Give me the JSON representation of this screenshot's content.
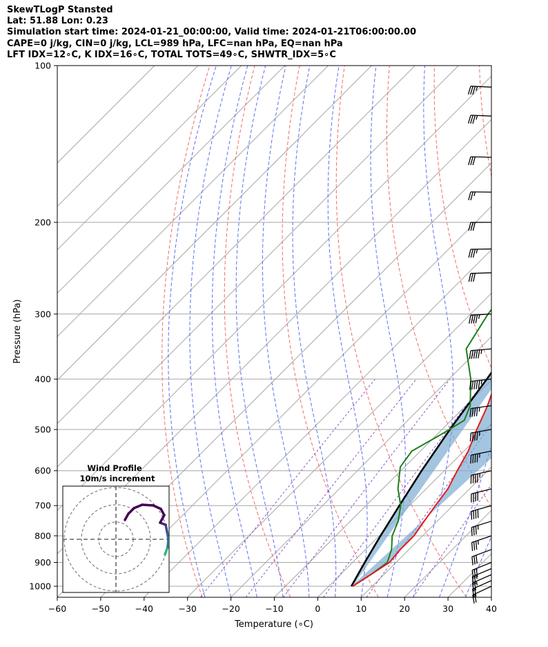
{
  "header": {
    "line1": "SkewTLogP Stansted",
    "line2": "Lat: 51.88   Lon: 0.23",
    "line3": "Simulation start time: 2024-01-21_00:00:00, Valid time: 2024-01-21T06:00:00.00",
    "line4": "CAPE=0 j/kg, CIN=0 j/kg, LCL=989 hPa, LFC=nan hPa, EQ=nan hPa",
    "line5": "LFT IDX=12∘C, K IDX=16∘C, TOTAL TOTS=49∘C, SHWTR_IDX=5∘C"
  },
  "chart_data": {
    "type": "line",
    "subtype": "skew-T log-P diagram",
    "xlabel": "Temperature (∘C)",
    "ylabel": "Pressure (hPa)",
    "x_ticks": [
      "−60",
      "−50",
      "−40",
      "−30",
      "−20",
      "−10",
      "0",
      "10",
      "20",
      "30",
      "40"
    ],
    "y_ticks": [
      "100",
      "200",
      "300",
      "400",
      "500",
      "600",
      "700",
      "800",
      "900",
      "1000"
    ],
    "xlim": [
      -60,
      40
    ],
    "ylim": [
      1050,
      100
    ],
    "y_scale": "log",
    "grid": true,
    "series": [
      {
        "role": "temperature",
        "color": "#e8191b",
        "points": [
          [
            16.5,
            100
          ],
          [
            7,
            125
          ],
          [
            -3.5,
            150
          ],
          [
            -5,
            165
          ],
          [
            -6.5,
            180
          ],
          [
            -10,
            200
          ],
          [
            -13.5,
            225
          ],
          [
            -15,
            250
          ],
          [
            -13.5,
            300
          ],
          [
            -12,
            350
          ],
          [
            -9,
            400
          ],
          [
            -5,
            450
          ],
          [
            -2,
            500
          ],
          [
            1,
            550
          ],
          [
            3,
            600
          ],
          [
            5,
            650
          ],
          [
            6,
            700
          ],
          [
            7,
            750
          ],
          [
            8,
            800
          ],
          [
            8,
            850
          ],
          [
            8.5,
            900
          ],
          [
            7,
            950
          ],
          [
            5.5,
            1000
          ]
        ]
      },
      {
        "role": "dewpoint",
        "color": "#1a7f1a",
        "points": [
          [
            -39,
            100
          ],
          [
            -39,
            125
          ],
          [
            -37,
            150
          ],
          [
            -35,
            170
          ],
          [
            -35.5,
            180
          ],
          [
            -31,
            200
          ],
          [
            -28,
            225
          ],
          [
            -28,
            250
          ],
          [
            -27,
            275
          ],
          [
            -26,
            300
          ],
          [
            -23,
            350
          ],
          [
            -15,
            400
          ],
          [
            -9,
            450
          ],
          [
            -7,
            480
          ],
          [
            -9,
            510
          ],
          [
            -12,
            550
          ],
          [
            -11,
            590
          ],
          [
            -6.5,
            650
          ],
          [
            -2,
            700
          ],
          [
            1,
            750
          ],
          [
            3,
            800
          ],
          [
            6,
            850
          ],
          [
            8,
            900
          ],
          [
            7,
            950
          ],
          [
            5.5,
            1000
          ]
        ]
      },
      {
        "role": "parcel",
        "color": "#000000",
        "points": [
          [
            5.2,
            1000
          ],
          [
            2.8,
            900
          ],
          [
            0.3,
            800
          ],
          [
            -2.3,
            700
          ],
          [
            -5.2,
            600
          ],
          [
            -8.2,
            500
          ],
          [
            -11.3,
            400
          ],
          [
            -15.5,
            300
          ],
          [
            -21,
            200
          ],
          [
            -30,
            100
          ]
        ]
      }
    ],
    "wind_barbs": {
      "pressures_hpa": [
        1000,
        975,
        950,
        925,
        900,
        850,
        800,
        750,
        700,
        650,
        600,
        550,
        500,
        450,
        400,
        350,
        300,
        250,
        225,
        200,
        175,
        150,
        125,
        110
      ],
      "speed_kt": [
        20,
        20,
        25,
        25,
        30,
        30,
        35,
        35,
        40,
        40,
        45,
        45,
        45,
        45,
        55,
        55,
        45,
        30,
        35,
        30,
        25,
        30,
        35,
        35
      ]
    },
    "hodograph": {
      "title": "Wind Profile",
      "subtitle": "10m/s increment"
    }
  }
}
